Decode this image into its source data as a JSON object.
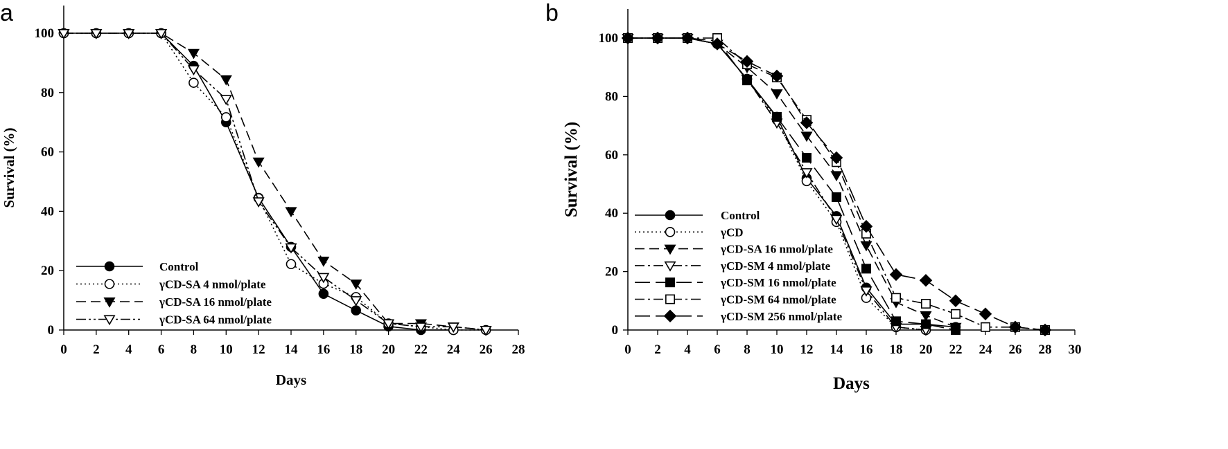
{
  "colors": {
    "line": "#000000",
    "background": "#ffffff"
  },
  "chart_data": [
    {
      "panel_label": "a",
      "type": "line",
      "xlabel": "Days",
      "ylabel": "Survival (%)",
      "xlim": [
        0,
        28
      ],
      "ylim": [
        0,
        110
      ],
      "xticks": [
        "0",
        "2",
        "4",
        "6",
        "8",
        "10",
        "12",
        "14",
        "16",
        "18",
        "20",
        "22",
        "24",
        "26",
        "28"
      ],
      "yticks": [
        "0",
        "20",
        "40",
        "60",
        "80",
        "100"
      ],
      "grid": false,
      "legend_position": "bottom-left",
      "series": [
        {
          "name": "Control",
          "marker": "filled-circle",
          "dash": "solid",
          "x": [
            0,
            2,
            4,
            6,
            8,
            10,
            12,
            14,
            16,
            18,
            20,
            22,
            24
          ],
          "y": [
            100,
            100,
            100,
            100,
            89,
            70,
            44.5,
            28,
            12.2,
            6.6,
            1.2,
            0,
            0
          ]
        },
        {
          "name": "γCD-SA 4 nmol/plate",
          "marker": "open-circle",
          "dash": "dotted",
          "x": [
            0,
            2,
            4,
            6,
            8,
            10,
            12,
            14,
            16,
            18,
            20,
            22,
            24,
            26
          ],
          "y": [
            100,
            100,
            100,
            100,
            83.3,
            71.7,
            44.4,
            22.2,
            15.6,
            11.1,
            2.2,
            1.1,
            0,
            0
          ]
        },
        {
          "name": "γCD-SA 16 nmol/plate",
          "marker": "filled-triangle-down",
          "dash": "dashed",
          "x": [
            0,
            2,
            4,
            6,
            8,
            10,
            12,
            14,
            16,
            18,
            20,
            22,
            24,
            26
          ],
          "y": [
            100,
            100,
            100,
            100,
            93.3,
            84.4,
            56.7,
            40,
            23.3,
            15.6,
            2.2,
            2.2,
            1.1,
            0
          ]
        },
        {
          "name": "γCD-SA 64 nmol/plate",
          "marker": "open-triangle-down",
          "dash": "dash-dot-dot",
          "x": [
            0,
            2,
            4,
            6,
            8,
            10,
            12,
            14,
            16,
            18,
            20,
            22,
            24,
            26
          ],
          "y": [
            100,
            100,
            100,
            100,
            87.8,
            77.8,
            43.3,
            27.8,
            17.8,
            10,
            2.2,
            1.1,
            1.1,
            0
          ]
        }
      ]
    },
    {
      "panel_label": "b",
      "type": "line",
      "xlabel": "Days",
      "ylabel": "Survival (%)",
      "xlim": [
        0,
        30
      ],
      "ylim": [
        0,
        110
      ],
      "xticks": [
        "0",
        "2",
        "4",
        "6",
        "8",
        "10",
        "12",
        "14",
        "16",
        "18",
        "20",
        "22",
        "24",
        "26",
        "28",
        "30"
      ],
      "yticks": [
        "0",
        "20",
        "40",
        "60",
        "80",
        "100"
      ],
      "grid": false,
      "legend_position": "bottom-left",
      "series": [
        {
          "name": "Control",
          "marker": "filled-circle",
          "dash": "solid",
          "x": [
            0,
            2,
            4,
            6,
            8,
            10,
            12,
            14,
            16,
            18,
            20,
            22
          ],
          "y": [
            100,
            100,
            100,
            98,
            86,
            73,
            52,
            39,
            14.5,
            2,
            2,
            1
          ]
        },
        {
          "name": "γCD",
          "marker": "open-circle",
          "dash": "dotted",
          "x": [
            0,
            2,
            4,
            6,
            8,
            10,
            12,
            14,
            16,
            18,
            20
          ],
          "y": [
            100,
            100,
            100,
            98,
            86,
            72,
            51,
            37,
            11,
            1,
            0
          ]
        },
        {
          "name": "γCD-SA 16 nmol/plate",
          "marker": "filled-triangle-down",
          "dash": "dashed",
          "x": [
            0,
            2,
            4,
            6,
            8,
            10,
            12,
            14,
            16,
            18,
            20,
            22
          ],
          "y": [
            100,
            100,
            100,
            98,
            90,
            81,
            66.5,
            53,
            29,
            9.5,
            5,
            1
          ]
        },
        {
          "name": "γCD-SM 4 nmol/plate",
          "marker": "open-triangle-down",
          "dash": "dash-dot",
          "x": [
            0,
            2,
            4,
            6,
            8,
            10,
            12,
            14,
            16,
            18,
            20
          ],
          "y": [
            100,
            100,
            100,
            98,
            86,
            71,
            54,
            38,
            13.5,
            1,
            0
          ]
        },
        {
          "name": "γCD-SM 16 nmol/plate",
          "marker": "filled-square",
          "dash": "long-dash",
          "x": [
            0,
            2,
            4,
            6,
            8,
            10,
            12,
            14,
            16,
            18,
            20,
            22
          ],
          "y": [
            100,
            100,
            100,
            99,
            85.5,
            73,
            59,
            45.5,
            21,
            3,
            2,
            0
          ]
        },
        {
          "name": "γCD-SM 64 nmol/plate",
          "marker": "open-square",
          "dash": "dash-dot",
          "x": [
            0,
            2,
            4,
            6,
            8,
            10,
            12,
            14,
            16,
            18,
            20,
            22,
            24,
            26,
            28
          ],
          "y": [
            100,
            100,
            100,
            100,
            91,
            86.5,
            72,
            57.5,
            33,
            11,
            9,
            5.5,
            1,
            1,
            0
          ]
        },
        {
          "name": "γCD-SM 256 nmol/plate",
          "marker": "filled-diamond",
          "dash": "long-dash",
          "x": [
            0,
            2,
            4,
            6,
            8,
            10,
            12,
            14,
            16,
            18,
            20,
            22,
            24,
            26,
            28
          ],
          "y": [
            100,
            100,
            100,
            98,
            92,
            87,
            71,
            59,
            35.5,
            19,
            17,
            10,
            5.5,
            1,
            0
          ]
        }
      ]
    }
  ]
}
